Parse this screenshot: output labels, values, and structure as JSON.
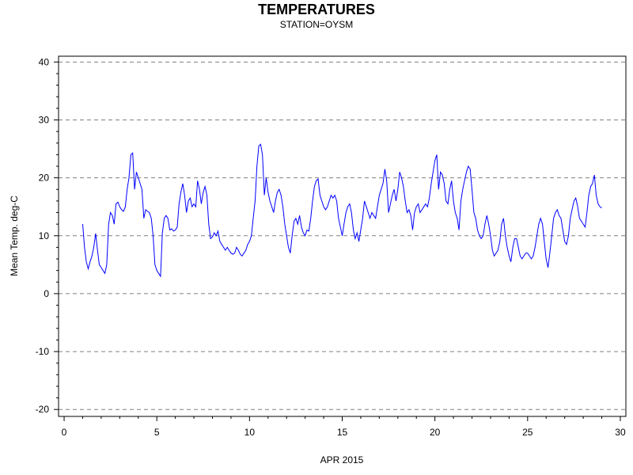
{
  "chart_data": {
    "type": "line",
    "title": "TEMPERATURES",
    "subtitle": "STATION=OYSM",
    "xlabel": "APR 2015",
    "ylabel": "Mean Temp. deg-C",
    "xlim": [
      -0.3,
      30.3
    ],
    "ylim": [
      -21.2,
      41.0
    ],
    "xticks": [
      0,
      5,
      10,
      15,
      20,
      25,
      30
    ],
    "yticks": [
      -20,
      -10,
      0,
      10,
      20,
      30,
      40
    ],
    "grid": "horizontal-dashed",
    "series": [
      {
        "name": "Mean Temp.",
        "color": "#0000ff",
        "points": [
          [
            1.0,
            12.0
          ],
          [
            1.1,
            8.0
          ],
          [
            1.2,
            5.5
          ],
          [
            1.3,
            4.3
          ],
          [
            1.4,
            5.5
          ],
          [
            1.5,
            6.5
          ],
          [
            1.6,
            8.0
          ],
          [
            1.7,
            10.4
          ],
          [
            1.8,
            7.5
          ],
          [
            1.9,
            5.0
          ],
          [
            2.0,
            4.5
          ],
          [
            2.1,
            4.0
          ],
          [
            2.2,
            3.5
          ],
          [
            2.3,
            5.0
          ],
          [
            2.4,
            12.0
          ],
          [
            2.5,
            14.0
          ],
          [
            2.6,
            13.5
          ],
          [
            2.7,
            12.0
          ],
          [
            2.8,
            15.5
          ],
          [
            2.9,
            15.8
          ],
          [
            3.0,
            15.0
          ],
          [
            3.1,
            14.5
          ],
          [
            3.2,
            14.2
          ],
          [
            3.3,
            15.0
          ],
          [
            3.4,
            18.0
          ],
          [
            3.5,
            20.0
          ],
          [
            3.6,
            24.0
          ],
          [
            3.7,
            24.3
          ],
          [
            3.8,
            18.0
          ],
          [
            3.9,
            21.0
          ],
          [
            4.0,
            20.0
          ],
          [
            4.1,
            19.0
          ],
          [
            4.2,
            18.0
          ],
          [
            4.3,
            13.0
          ],
          [
            4.4,
            14.5
          ],
          [
            4.5,
            14.2
          ],
          [
            4.6,
            14.0
          ],
          [
            4.7,
            13.0
          ],
          [
            4.8,
            10.0
          ],
          [
            4.9,
            5.0
          ],
          [
            5.0,
            4.0
          ],
          [
            5.1,
            3.5
          ],
          [
            5.2,
            3.0
          ],
          [
            5.3,
            10.5
          ],
          [
            5.4,
            13.0
          ],
          [
            5.5,
            13.5
          ],
          [
            5.6,
            13.0
          ],
          [
            5.7,
            11.0
          ],
          [
            5.8,
            11.2
          ],
          [
            5.9,
            10.8
          ],
          [
            6.0,
            11.0
          ],
          [
            6.1,
            11.5
          ],
          [
            6.2,
            15.5
          ],
          [
            6.3,
            17.5
          ],
          [
            6.4,
            19.0
          ],
          [
            6.5,
            17.0
          ],
          [
            6.6,
            14.0
          ],
          [
            6.7,
            16.0
          ],
          [
            6.8,
            16.5
          ],
          [
            6.9,
            15.0
          ],
          [
            7.0,
            15.5
          ],
          [
            7.1,
            15.0
          ],
          [
            7.2,
            19.5
          ],
          [
            7.3,
            18.0
          ],
          [
            7.4,
            15.5
          ],
          [
            7.5,
            17.5
          ],
          [
            7.6,
            18.5
          ],
          [
            7.7,
            17.0
          ],
          [
            7.8,
            12.0
          ],
          [
            7.9,
            9.5
          ],
          [
            8.0,
            9.8
          ],
          [
            8.1,
            10.5
          ],
          [
            8.2,
            10.0
          ],
          [
            8.3,
            10.8
          ],
          [
            8.4,
            9.0
          ],
          [
            8.5,
            8.5
          ],
          [
            8.6,
            8.0
          ],
          [
            8.7,
            7.5
          ],
          [
            8.8,
            8.0
          ],
          [
            8.9,
            7.5
          ],
          [
            9.0,
            7.0
          ],
          [
            9.1,
            6.8
          ],
          [
            9.2,
            7.0
          ],
          [
            9.3,
            8.0
          ],
          [
            9.4,
            7.5
          ],
          [
            9.5,
            6.8
          ],
          [
            9.6,
            6.5
          ],
          [
            9.7,
            7.0
          ],
          [
            9.8,
            7.5
          ],
          [
            9.9,
            8.5
          ],
          [
            10.0,
            9.0
          ],
          [
            10.1,
            10.0
          ],
          [
            10.2,
            13.0
          ],
          [
            10.3,
            16.0
          ],
          [
            10.4,
            22.0
          ],
          [
            10.5,
            25.5
          ],
          [
            10.6,
            25.8
          ],
          [
            10.7,
            24.0
          ],
          [
            10.8,
            17.0
          ],
          [
            10.9,
            20.0
          ],
          [
            11.0,
            17.5
          ],
          [
            11.1,
            16.0
          ],
          [
            11.2,
            15.0
          ],
          [
            11.3,
            14.0
          ],
          [
            11.4,
            16.0
          ],
          [
            11.5,
            17.5
          ],
          [
            11.6,
            18.0
          ],
          [
            11.7,
            17.0
          ],
          [
            11.8,
            15.0
          ],
          [
            11.9,
            12.0
          ],
          [
            12.0,
            10.0
          ],
          [
            12.1,
            8.0
          ],
          [
            12.2,
            7.0
          ],
          [
            12.3,
            10.0
          ],
          [
            12.4,
            12.5
          ],
          [
            12.5,
            13.0
          ],
          [
            12.6,
            12.0
          ],
          [
            12.7,
            13.5
          ],
          [
            12.8,
            11.5
          ],
          [
            12.9,
            10.5
          ],
          [
            13.0,
            10.0
          ],
          [
            13.1,
            11.0
          ],
          [
            13.2,
            10.8
          ],
          [
            13.3,
            13.0
          ],
          [
            13.4,
            16.0
          ],
          [
            13.5,
            18.5
          ],
          [
            13.6,
            19.5
          ],
          [
            13.7,
            19.8
          ],
          [
            13.8,
            17.0
          ],
          [
            13.9,
            16.0
          ],
          [
            14.0,
            15.0
          ],
          [
            14.1,
            14.5
          ],
          [
            14.2,
            15.0
          ],
          [
            14.3,
            16.0
          ],
          [
            14.4,
            17.0
          ],
          [
            14.5,
            16.5
          ],
          [
            14.6,
            17.0
          ],
          [
            14.7,
            16.0
          ],
          [
            14.8,
            13.0
          ],
          [
            14.9,
            11.5
          ],
          [
            15.0,
            10.0
          ],
          [
            15.1,
            12.0
          ],
          [
            15.2,
            14.0
          ],
          [
            15.3,
            15.0
          ],
          [
            15.4,
            15.5
          ],
          [
            15.5,
            14.0
          ],
          [
            15.6,
            11.0
          ],
          [
            15.7,
            9.5
          ],
          [
            15.8,
            10.5
          ],
          [
            15.9,
            9.0
          ],
          [
            16.0,
            11.0
          ],
          [
            16.1,
            13.0
          ],
          [
            16.2,
            16.0
          ],
          [
            16.3,
            15.0
          ],
          [
            16.4,
            14.0
          ],
          [
            16.5,
            13.0
          ],
          [
            16.6,
            14.0
          ],
          [
            16.7,
            13.5
          ],
          [
            16.8,
            13.0
          ],
          [
            16.9,
            15.0
          ],
          [
            17.0,
            17.0
          ],
          [
            17.1,
            18.0
          ],
          [
            17.2,
            19.0
          ],
          [
            17.3,
            21.5
          ],
          [
            17.4,
            19.5
          ],
          [
            17.5,
            14.0
          ],
          [
            17.6,
            15.5
          ],
          [
            17.7,
            17.0
          ],
          [
            17.8,
            18.0
          ],
          [
            17.9,
            16.0
          ],
          [
            18.0,
            18.0
          ],
          [
            18.1,
            21.0
          ],
          [
            18.2,
            20.0
          ],
          [
            18.3,
            18.5
          ],
          [
            18.4,
            16.0
          ],
          [
            18.5,
            14.0
          ],
          [
            18.6,
            14.5
          ],
          [
            18.7,
            13.5
          ],
          [
            18.8,
            11.0
          ],
          [
            18.9,
            14.0
          ],
          [
            19.0,
            15.0
          ],
          [
            19.1,
            15.5
          ],
          [
            19.2,
            14.0
          ],
          [
            19.3,
            14.5
          ],
          [
            19.4,
            15.0
          ],
          [
            19.5,
            15.5
          ],
          [
            19.6,
            15.0
          ],
          [
            19.7,
            16.5
          ],
          [
            19.8,
            19.0
          ],
          [
            19.9,
            21.0
          ],
          [
            20.0,
            23.0
          ],
          [
            20.1,
            24.0
          ],
          [
            20.2,
            18.0
          ],
          [
            20.3,
            21.0
          ],
          [
            20.4,
            20.5
          ],
          [
            20.5,
            19.0
          ],
          [
            20.6,
            16.0
          ],
          [
            20.7,
            15.5
          ],
          [
            20.8,
            18.0
          ],
          [
            20.9,
            19.5
          ],
          [
            21.0,
            16.0
          ],
          [
            21.1,
            14.0
          ],
          [
            21.2,
            13.0
          ],
          [
            21.3,
            11.0
          ],
          [
            21.4,
            16.0
          ],
          [
            21.5,
            18.0
          ],
          [
            21.6,
            19.5
          ],
          [
            21.7,
            21.0
          ],
          [
            21.8,
            22.0
          ],
          [
            21.9,
            21.5
          ],
          [
            22.0,
            18.0
          ],
          [
            22.1,
            14.0
          ],
          [
            22.2,
            13.0
          ],
          [
            22.3,
            11.0
          ],
          [
            22.4,
            10.0
          ],
          [
            22.5,
            9.5
          ],
          [
            22.6,
            10.0
          ],
          [
            22.7,
            12.0
          ],
          [
            22.8,
            13.5
          ],
          [
            22.9,
            12.0
          ],
          [
            23.0,
            10.0
          ],
          [
            23.1,
            7.5
          ],
          [
            23.2,
            6.5
          ],
          [
            23.3,
            7.0
          ],
          [
            23.4,
            7.5
          ],
          [
            23.5,
            9.0
          ],
          [
            23.6,
            12.0
          ],
          [
            23.7,
            13.0
          ],
          [
            23.8,
            10.0
          ],
          [
            23.9,
            8.0
          ],
          [
            24.0,
            6.5
          ],
          [
            24.1,
            5.5
          ],
          [
            24.2,
            8.0
          ],
          [
            24.3,
            9.5
          ],
          [
            24.4,
            9.5
          ],
          [
            24.5,
            8.0
          ],
          [
            24.6,
            6.5
          ],
          [
            24.7,
            6.0
          ],
          [
            24.8,
            6.5
          ],
          [
            24.9,
            7.0
          ],
          [
            25.0,
            7.0
          ],
          [
            25.1,
            6.5
          ],
          [
            25.2,
            6.0
          ],
          [
            25.3,
            6.5
          ],
          [
            25.4,
            8.0
          ],
          [
            25.5,
            10.0
          ],
          [
            25.6,
            12.0
          ],
          [
            25.7,
            13.0
          ],
          [
            25.8,
            12.0
          ],
          [
            25.9,
            9.0
          ],
          [
            26.0,
            6.0
          ],
          [
            26.1,
            4.5
          ],
          [
            26.2,
            7.0
          ],
          [
            26.3,
            10.0
          ],
          [
            26.4,
            13.0
          ],
          [
            26.5,
            14.0
          ],
          [
            26.6,
            14.5
          ],
          [
            26.7,
            13.5
          ],
          [
            26.8,
            13.0
          ],
          [
            26.9,
            11.0
          ],
          [
            27.0,
            9.0
          ],
          [
            27.1,
            8.5
          ],
          [
            27.2,
            10.0
          ],
          [
            27.3,
            13.0
          ],
          [
            27.4,
            14.5
          ],
          [
            27.5,
            16.0
          ],
          [
            27.6,
            16.5
          ],
          [
            27.7,
            15.0
          ],
          [
            27.8,
            13.0
          ],
          [
            27.9,
            12.5
          ],
          [
            28.0,
            12.0
          ],
          [
            28.1,
            11.5
          ],
          [
            28.2,
            14.0
          ],
          [
            28.3,
            17.0
          ],
          [
            28.4,
            18.5
          ],
          [
            28.5,
            19.0
          ],
          [
            28.6,
            20.5
          ],
          [
            28.7,
            17.0
          ],
          [
            28.8,
            15.5
          ],
          [
            28.9,
            15.0
          ],
          [
            29.0,
            14.8
          ]
        ]
      }
    ]
  }
}
